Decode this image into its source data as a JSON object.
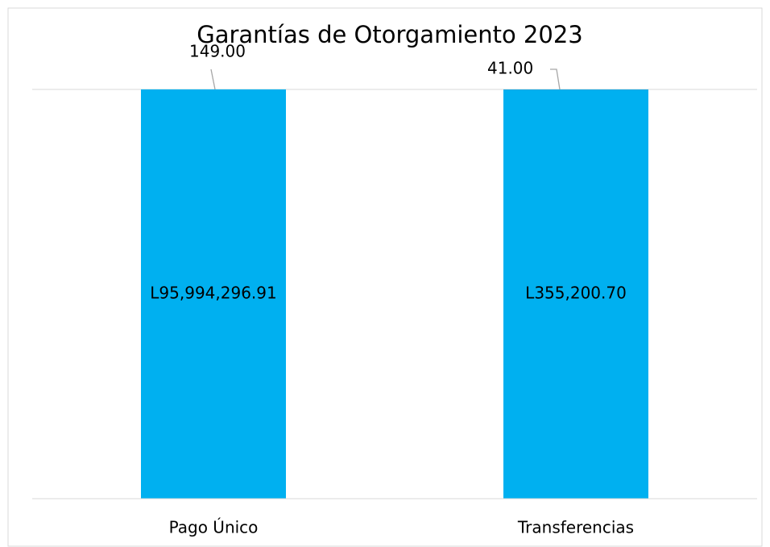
{
  "chart_data": {
    "type": "bar",
    "stacked": "percent",
    "title": "Garantías de Otorgamiento 2023",
    "categories": [
      "Pago Único",
      "Transferencias"
    ],
    "series": [
      {
        "color": "#00b0f0",
        "values": [
          95994296.91,
          355200.7
        ],
        "value_labels": [
          "L95,994,296.91",
          "L355,200.70"
        ]
      },
      {
        "color": "#ff0000",
        "values": [
          149,
          41
        ],
        "value_labels": [
          "149.00",
          "41.00"
        ]
      }
    ]
  }
}
